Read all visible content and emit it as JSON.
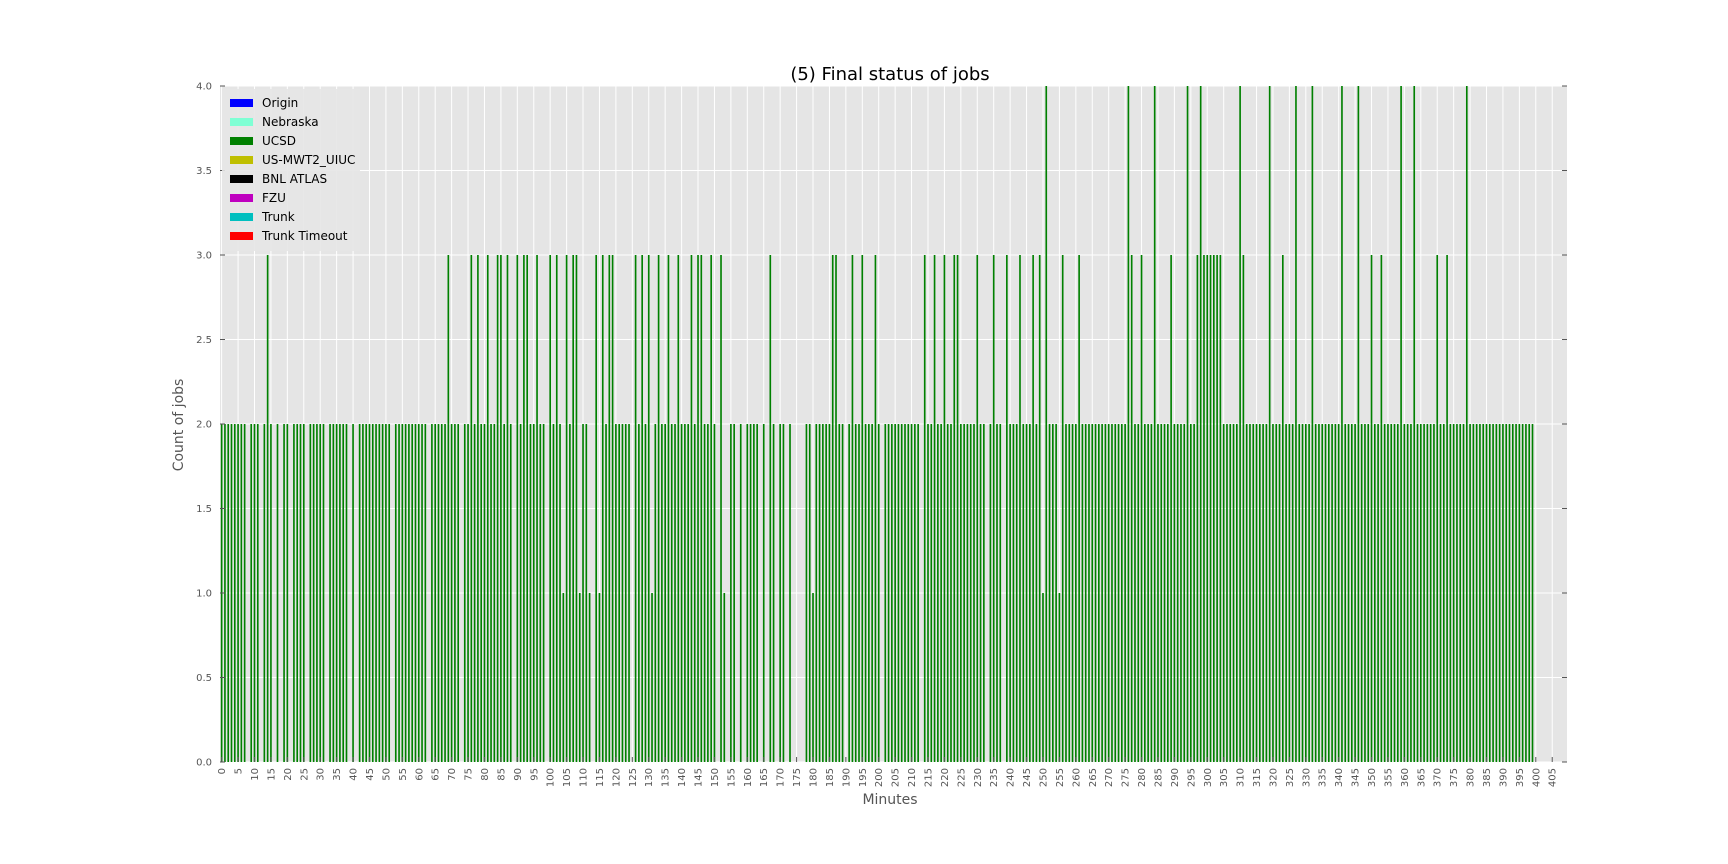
{
  "chart_data": {
    "type": "bar",
    "title": "(5) Final status of jobs",
    "xlabel": "Minutes",
    "ylabel": "Count of jobs",
    "ylim": [
      0,
      4
    ],
    "yticks": [
      "0.0",
      "0.5",
      "1.0",
      "1.5",
      "2.0",
      "2.5",
      "3.0",
      "3.5",
      "4.0"
    ],
    "x_tick_step": 5,
    "grid": true,
    "stacked": true,
    "legend_position": "upper-left",
    "categories_range": [
      0,
      409
    ],
    "series": [
      {
        "name": "Origin",
        "color": "#0000ff",
        "values": []
      },
      {
        "name": "Nebraska",
        "color": "#7fffd4",
        "values": []
      },
      {
        "name": "UCSD",
        "color": "#008000",
        "values": [
          2,
          2,
          2,
          2,
          2,
          2,
          2,
          2,
          0,
          2,
          2,
          2,
          0,
          2,
          3,
          2,
          0,
          2,
          0,
          2,
          2,
          0,
          2,
          2,
          2,
          2,
          0,
          2,
          2,
          2,
          2,
          2,
          0,
          2,
          2,
          2,
          2,
          2,
          2,
          0,
          2,
          0,
          2,
          2,
          2,
          2,
          2,
          2,
          2,
          2,
          2,
          2,
          0,
          2,
          2,
          2,
          2,
          2,
          2,
          2,
          2,
          2,
          2,
          0,
          2,
          2,
          2,
          2,
          2,
          3,
          2,
          2,
          2,
          0,
          2,
          2,
          3,
          2,
          3,
          2,
          2,
          3,
          2,
          2,
          3,
          3,
          2,
          3,
          2,
          0,
          3,
          2,
          3,
          3,
          2,
          2,
          3,
          2,
          2,
          0,
          3,
          2,
          3,
          2,
          1,
          3,
          2,
          3,
          3,
          1,
          2,
          2,
          1,
          0,
          3,
          1,
          3,
          2,
          3,
          3,
          2,
          2,
          2,
          2,
          2,
          0,
          3,
          2,
          3,
          2,
          3,
          1,
          2,
          3,
          2,
          2,
          3,
          2,
          2,
          3,
          2,
          2,
          2,
          3,
          2,
          3,
          3,
          2,
          2,
          3,
          2,
          0,
          3,
          1,
          0,
          2,
          2,
          0,
          2,
          0,
          2,
          2,
          2,
          2,
          0,
          2,
          0,
          3,
          2,
          0,
          2,
          2,
          0,
          2,
          0,
          0,
          0,
          0,
          2,
          2,
          1,
          2,
          2,
          2,
          2,
          2,
          3,
          3,
          2,
          2,
          0,
          2,
          3,
          2,
          2,
          3,
          2,
          2,
          2,
          3,
          2,
          0,
          2,
          2,
          2,
          2,
          2,
          2,
          2,
          2,
          2,
          2,
          2,
          0,
          3,
          2,
          2,
          3,
          2,
          2,
          3,
          2,
          2,
          3,
          3,
          2,
          2,
          2,
          2,
          2,
          3,
          2,
          2,
          0,
          2,
          3,
          2,
          2,
          0,
          3,
          2,
          2,
          2,
          3,
          2,
          2,
          2,
          3,
          2,
          3,
          1,
          4,
          2,
          2,
          2,
          1,
          3,
          2,
          2,
          2,
          2,
          3,
          2,
          2,
          2,
          2,
          2,
          2,
          2,
          2,
          2,
          2,
          2,
          2,
          2,
          2,
          4,
          3,
          2,
          2,
          3,
          2,
          2,
          2,
          4,
          2,
          2,
          2,
          2,
          3,
          2,
          2,
          2,
          2,
          4,
          2,
          2,
          3,
          4,
          3,
          3,
          3,
          3,
          3,
          3,
          2,
          2,
          2,
          2,
          2,
          4,
          3,
          2,
          2,
          2,
          2,
          2,
          2,
          2,
          4,
          2,
          2,
          2,
          3,
          2,
          2,
          2,
          4,
          2,
          2,
          2,
          2,
          4,
          2,
          2,
          2,
          2,
          2,
          2,
          2,
          2,
          4,
          2,
          2,
          2,
          2,
          4,
          2,
          2,
          2,
          3,
          2,
          2,
          3,
          2,
          2,
          2,
          2,
          2,
          4,
          2,
          2,
          2,
          4,
          2,
          2,
          2,
          2,
          2,
          2,
          3,
          2,
          2,
          3,
          2,
          2,
          2,
          2,
          2,
          4,
          2,
          2,
          2,
          2,
          2,
          2,
          2,
          2,
          2,
          2,
          2,
          2,
          2,
          2,
          2,
          2,
          2,
          2,
          2,
          2
        ]
      },
      {
        "name": "US-MWT2_UIUC",
        "color": "#bfbf00",
        "values": []
      },
      {
        "name": "BNL ATLAS",
        "color": "#000000",
        "values": []
      },
      {
        "name": "FZU",
        "color": "#bf00bf",
        "values": []
      },
      {
        "name": "Trunk",
        "color": "#00bfbf",
        "values": []
      },
      {
        "name": "Trunk Timeout",
        "color": "#ff0000",
        "values": []
      }
    ]
  },
  "colors": {
    "plot_background": "#e5e5e5",
    "grid": "#ffffff",
    "bar_main": "#008000"
  }
}
